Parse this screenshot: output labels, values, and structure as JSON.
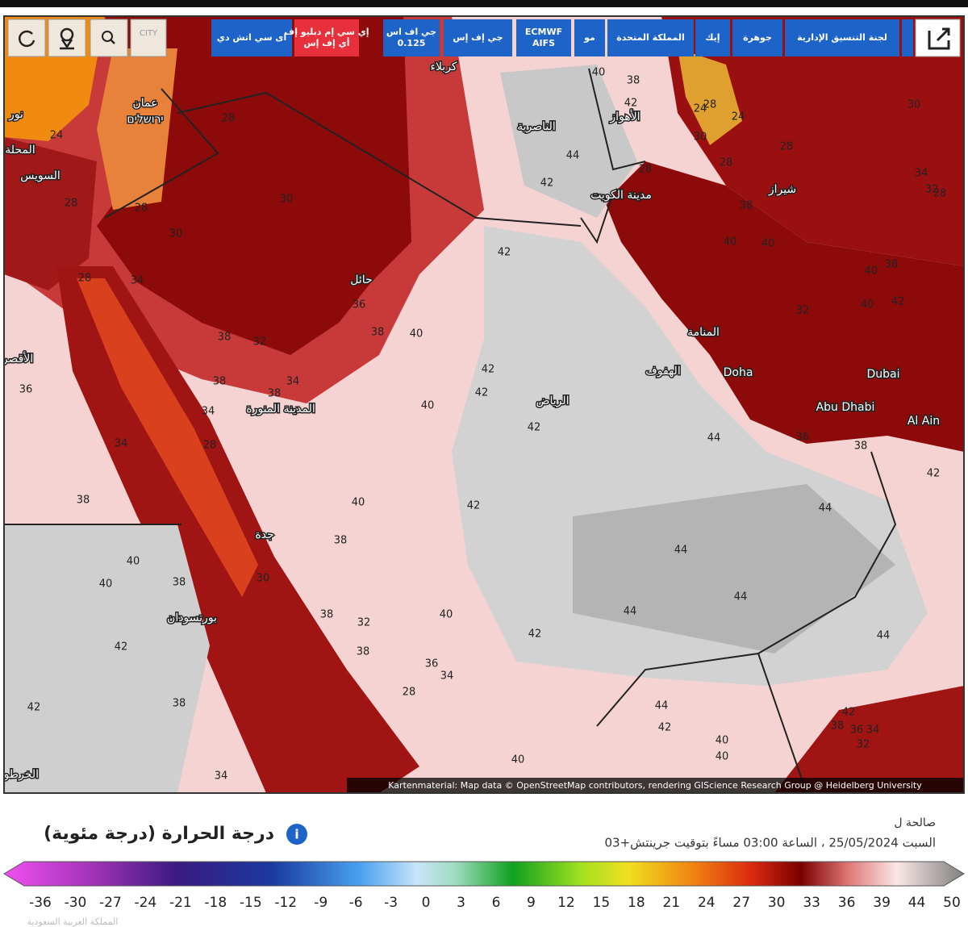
{
  "toolbar": {
    "city_toggle": "CITY",
    "models": [
      [
        "اى سي اتش دي"
      ],
      [
        "إي سي إم دبليو إف",
        "أي إف إس"
      ],
      [
        "جي اف اس",
        "0.125"
      ],
      [
        "جي إف إس"
      ],
      [
        "ECMWF",
        "AIFS"
      ],
      [
        "مو"
      ],
      [
        "المملكة المتحدة"
      ],
      [
        "إيك"
      ],
      [
        "جوهرة"
      ],
      [
        "لجنة التنسيق الإدارية"
      ]
    ]
  },
  "map": {
    "places": [
      "عمان",
      "ירושלים",
      "نور",
      "المحلة",
      "السويس",
      "كربلاء",
      "الناصرية",
      "الأهواز",
      "مدينة الكويت",
      "شيراز",
      "حائل",
      "المدينة المنورة",
      "الرياض",
      "الهفوف",
      "المنامة",
      "Doha",
      "Dubai",
      "Abu Dhabi",
      "Al Ain",
      "جدة",
      "بورتسودان",
      "الأقصر",
      "الخرطوم"
    ],
    "temperatures": [
      28,
      24,
      28,
      28,
      30,
      30,
      28,
      34,
      36,
      38,
      40,
      38,
      32,
      38,
      34,
      38,
      34,
      28,
      34,
      36,
      38,
      40,
      42,
      38,
      40,
      40,
      38,
      30,
      42,
      38,
      32,
      40,
      38,
      36,
      34,
      28,
      42,
      38,
      34,
      40,
      42,
      44,
      44,
      44,
      44,
      44,
      44,
      44,
      42,
      40,
      40,
      42,
      38,
      36,
      34,
      32,
      38,
      36,
      42,
      42,
      40,
      40,
      38,
      40,
      40,
      38,
      32,
      28,
      24,
      24,
      30,
      28,
      28,
      34,
      32,
      28,
      42,
      40,
      38,
      44,
      42,
      42,
      40,
      42,
      42,
      42,
      30,
      28
    ],
    "attribution": "Kartenmaterial: Map data © OpenStreetMap contributors, rendering GIScience Research Group @ Heidelberg University"
  },
  "legend": {
    "title": "درجة الحرارة (درجة مئوية)",
    "valid_label": "صالحة ل",
    "valid_time": "السبت 25/05/2024 ، الساعة 03:00 مساءً بتوقيت جرينتش+03",
    "footer_cut": "المملكة العربية السعودية",
    "ticks": [
      -36,
      -30,
      -27,
      -24,
      -21,
      -18,
      -15,
      -12,
      -9,
      -6,
      -3,
      0,
      3,
      6,
      9,
      12,
      15,
      18,
      21,
      24,
      27,
      30,
      33,
      36,
      39,
      44,
      50
    ]
  }
}
